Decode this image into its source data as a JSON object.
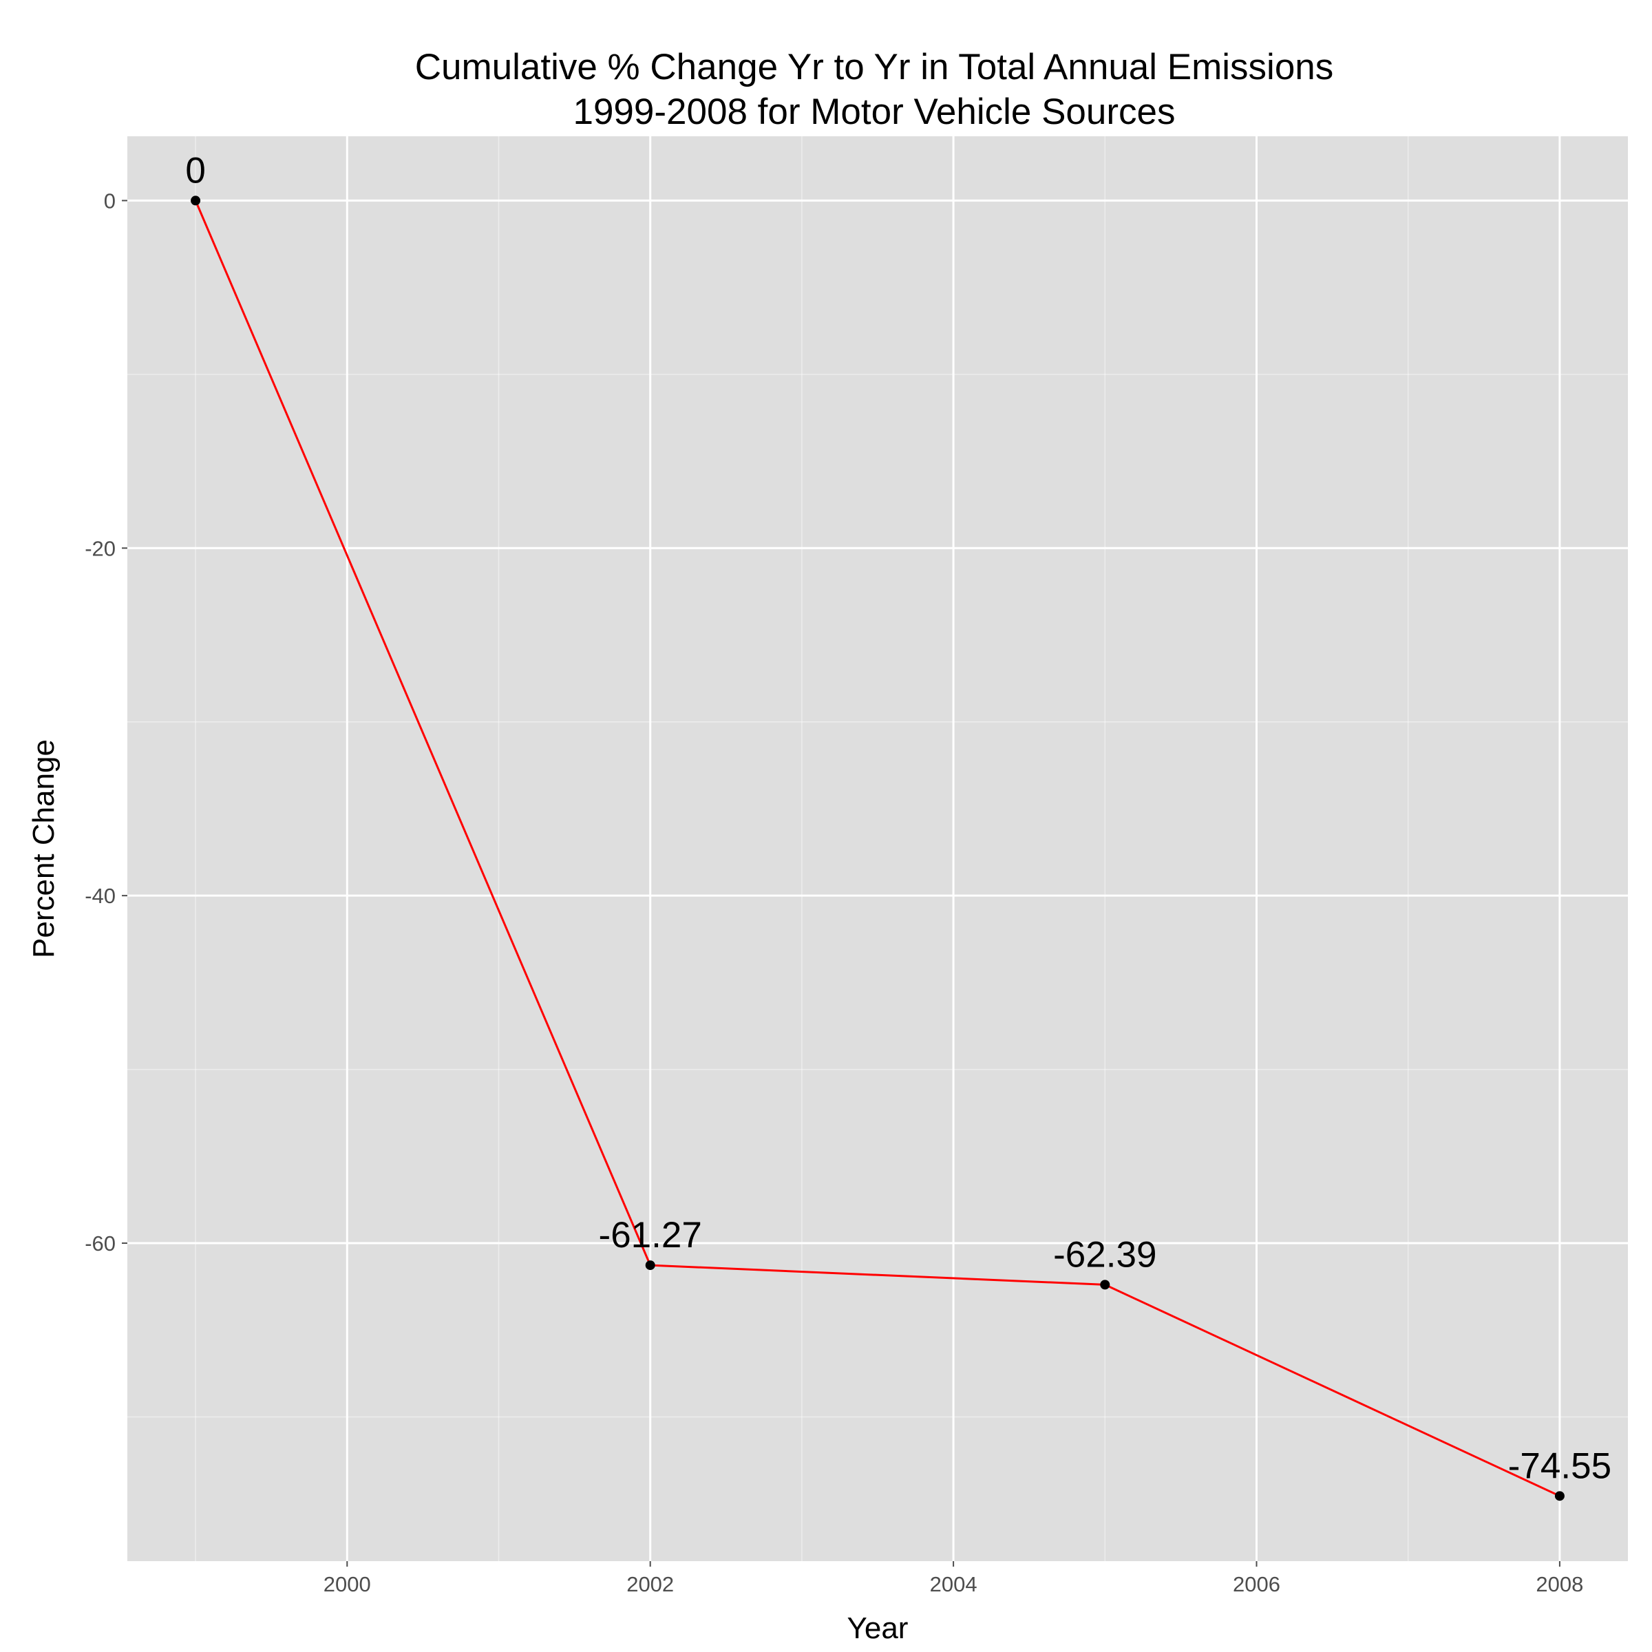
{
  "chart_data": {
    "type": "line",
    "title": "Cumulative % Change Yr to Yr in Total Annual Emissions",
    "subtitle": "1999-2008 for Motor Vehicle Sources",
    "xlabel": "Year",
    "ylabel": "Percent Change",
    "x": [
      1999,
      2002,
      2005,
      2008
    ],
    "series": [
      {
        "values": [
          0,
          -61.27,
          -62.39,
          -74.55
        ]
      }
    ],
    "data_labels": [
      "0",
      "-61.27",
      "-62.39",
      "-74.55"
    ],
    "xlim": [
      1998.55,
      2008.45
    ],
    "ylim": [
      -78.3,
      3.7
    ],
    "x_ticks": [
      2000,
      2002,
      2004,
      2006,
      2008
    ],
    "x_tick_labels": [
      "2000",
      "2002",
      "2004",
      "2006",
      "2008"
    ],
    "x_minor_ticks": [
      1999,
      2001,
      2003,
      2005,
      2007
    ],
    "y_ticks": [
      0,
      -20,
      -40,
      -60
    ],
    "y_tick_labels": [
      "0",
      "-20",
      "-40",
      "-60"
    ],
    "y_minor_ticks": [
      -10,
      -30,
      -50,
      -70
    ],
    "grid": true,
    "legend": "none",
    "colors": {
      "line": "#ff0000",
      "point": "#000000",
      "panel": "#dedede",
      "grid": "#ffffff"
    }
  }
}
